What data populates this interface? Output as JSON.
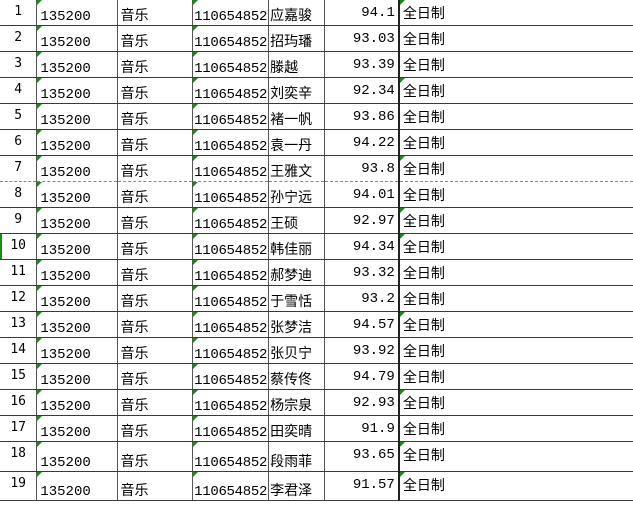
{
  "rows": [
    {
      "n": "1",
      "code": "135200",
      "major": "音乐",
      "id": "110654852",
      "name": "应嘉骏",
      "score": "94.1",
      "type": "全日制",
      "flag": true
    },
    {
      "n": "2",
      "code": "135200",
      "major": "音乐",
      "id": "110654852",
      "name": "招玙璠",
      "score": "93.03",
      "type": "全日制",
      "flag": false
    },
    {
      "n": "3",
      "code": "135200",
      "major": "音乐",
      "id": "110654852",
      "name": "滕越",
      "score": "93.39",
      "type": "全日制",
      "flag": false
    },
    {
      "n": "4",
      "code": "135200",
      "major": "音乐",
      "id": "110654852",
      "name": "刘奕辛",
      "score": "92.34",
      "type": "全日制",
      "flag": true
    },
    {
      "n": "5",
      "code": "135200",
      "major": "音乐",
      "id": "110654852",
      "name": "褚一帆",
      "score": "93.86",
      "type": "全日制",
      "flag": false
    },
    {
      "n": "6",
      "code": "135200",
      "major": "音乐",
      "id": "110654852",
      "name": "袁一丹",
      "score": "94.22",
      "type": "全日制",
      "flag": false
    },
    {
      "n": "7",
      "code": "135200",
      "major": "音乐",
      "id": "110654852",
      "name": "王雅文",
      "score": "93.8",
      "type": "全日制",
      "flag": true
    },
    {
      "n": "8",
      "code": "135200",
      "major": "音乐",
      "id": "110654852",
      "name": "孙宁远",
      "score": "94.01",
      "type": "全日制",
      "flag": false
    },
    {
      "n": "9",
      "code": "135200",
      "major": "音乐",
      "id": "110654852",
      "name": "王硕",
      "score": "92.97",
      "type": "全日制",
      "flag": true
    },
    {
      "n": "10",
      "code": "135200",
      "major": "音乐",
      "id": "110654852",
      "name": "韩佳丽",
      "score": "94.34",
      "type": "全日制",
      "flag": true
    },
    {
      "n": "11",
      "code": "135200",
      "major": "音乐",
      "id": "110654852",
      "name": "郝梦迪",
      "score": "93.32",
      "type": "全日制",
      "flag": false
    },
    {
      "n": "12",
      "code": "135200",
      "major": "音乐",
      "id": "110654852",
      "name": "于雪恬",
      "score": "93.2",
      "type": "全日制",
      "flag": false
    },
    {
      "n": "13",
      "code": "135200",
      "major": "音乐",
      "id": "110654852",
      "name": "张梦洁",
      "score": "94.57",
      "type": "全日制",
      "flag": true
    },
    {
      "n": "14",
      "code": "135200",
      "major": "音乐",
      "id": "110654852",
      "name": "张贝宁",
      "score": "93.92",
      "type": "全日制",
      "flag": false
    },
    {
      "n": "15",
      "code": "135200",
      "major": "音乐",
      "id": "110654852",
      "name": "蔡传佟",
      "score": "94.79",
      "type": "全日制",
      "flag": false
    },
    {
      "n": "16",
      "code": "135200",
      "major": "音乐",
      "id": "110654852",
      "name": "杨宗泉",
      "score": "92.93",
      "type": "全日制",
      "flag": true
    },
    {
      "n": "17",
      "code": "135200",
      "major": "音乐",
      "id": "110654852",
      "name": "田奕晴",
      "score": "91.9",
      "type": "全日制",
      "flag": false
    },
    {
      "n": "18",
      "code": "135200",
      "major": "音乐",
      "id": "110654852",
      "name": "段雨菲",
      "score": "93.65",
      "type": "全日制",
      "flag": true
    },
    {
      "n": "19",
      "code": "135200",
      "major": "音乐",
      "id": "110654852",
      "name": "李君泽",
      "score": "91.57",
      "type": "全日制",
      "flag": true
    }
  ],
  "colors": {
    "grid": "#3a3a3a",
    "marker": "#1a8a1a"
  }
}
